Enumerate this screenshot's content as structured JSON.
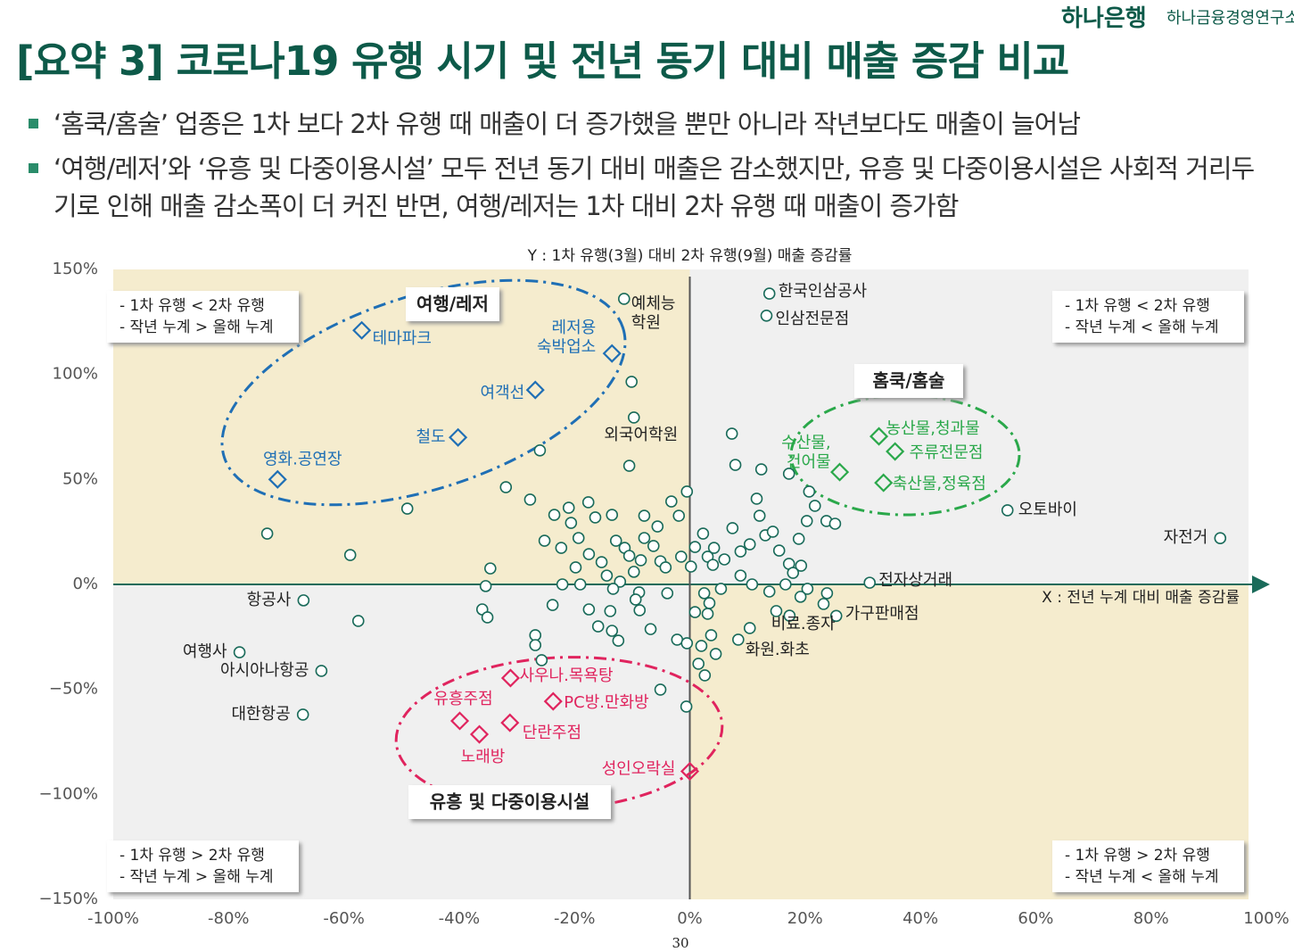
{
  "header": {
    "logo": "하나은행",
    "institute": "하나금융경영연구소"
  },
  "title": "[요약 3] 코로나19 유행 시기 및 전년 동기 대비 매출 증감 비교",
  "bullets": [
    "‘홈쿡/홈술’ 업종은 1차 보다 2차 유행 때 매출이 더 증가했을 뿐만 아니라 작년보다도 매출이 늘어남",
    "‘여행/레저’와 ‘유흥 및 다중이용시설’ 모두 전년 동기 대비 매출은 감소했지만, 유흥 및 다중이용시설은 사회적 거리두기로 인해 매출 감소폭이 더 커진 반면, 여행/레저는 1차 대비 2차 유행 때 매출이 증가함"
  ],
  "chart_data": {
    "type": "scatter",
    "y_label": "Y : 1차 유행(3월) 대비 2차 유행(9월) 매출 증감률",
    "x_label": "X : 전년 누계 대비 매출 증감률",
    "xlim": [
      -100,
      100
    ],
    "ylim": [
      -150,
      150
    ],
    "xticks": [
      {
        "value": -100,
        "label": "-100%"
      },
      {
        "value": -80,
        "label": "-80%"
      },
      {
        "value": -60,
        "label": "-60%"
      },
      {
        "value": -40,
        "label": "-40%"
      },
      {
        "value": -20,
        "label": "-20%"
      },
      {
        "value": 0,
        "label": "0%"
      },
      {
        "value": 20,
        "label": "20%"
      },
      {
        "value": 40,
        "label": "40%"
      },
      {
        "value": 60,
        "label": "60%"
      },
      {
        "value": 80,
        "label": "80%"
      },
      {
        "value": 100,
        "label": "100%"
      }
    ],
    "yticks": [
      {
        "value": 150,
        "label": "150%"
      },
      {
        "value": 100,
        "label": "100%"
      },
      {
        "value": 50,
        "label": "50%"
      },
      {
        "value": 0,
        "label": "0%"
      },
      {
        "value": -50,
        "label": "−50%"
      },
      {
        "value": -100,
        "label": "−100%"
      },
      {
        "value": -150,
        "label": "−150%"
      }
    ],
    "quadrant_notes": [
      [
        "- 1차 유행 < 2차 유행",
        "- 작년 누계 > 올해 누계"
      ],
      [
        "- 1차 유행 < 2차 유행",
        "- 작년 누계 < 올해 누계"
      ],
      [
        "- 1차 유행 > 2차 유행",
        "- 작년 누계 > 올해 누계"
      ],
      [
        "- 1차 유행 > 2차 유행",
        "- 작년 누계 < 올해 누계"
      ]
    ],
    "series": [
      {
        "name": "여행/레저",
        "color": "#1f6fb5",
        "marker": "diamond",
        "labels": [
          "테마파크",
          "레저용\n숙박업소",
          "여객선",
          "철도",
          "영화.공연장"
        ],
        "x": [
          -56.9,
          -13.5,
          -26.8,
          -40.2,
          -71.5
        ],
        "values": [
          121,
          110,
          92.6,
          70,
          50
        ]
      },
      {
        "name": "홈쿡/홈술",
        "color": "#2aa84a",
        "marker": "diamond",
        "labels": [
          "수산물,\n건어물",
          "농산물,청과물",
          "주류전문점",
          "축산물,정육점"
        ],
        "x": [
          26,
          32.8,
          35.6,
          33.6
        ],
        "values": [
          53.5,
          70.5,
          63.3,
          48.4
        ]
      },
      {
        "name": "유흥 및 다중이용시설",
        "color": "#e0245e",
        "marker": "diamond",
        "labels": [
          "사우나.목욕탕",
          "PC방.만화방",
          "유흥주점",
          "단란주점",
          "노래방",
          "성인오락실"
        ],
        "x": [
          -31.1,
          -23.7,
          -39.9,
          -31.2,
          -36.5,
          0
        ],
        "values": [
          -44.6,
          -55.7,
          -65,
          -65.9,
          -71.4,
          -89
        ]
      },
      {
        "color": "#1a6b5a",
        "marker": "circle",
        "labels": [
          "예체능\n학원",
          "한국인삼공사",
          "인삼전문점",
          "외국어학원",
          "오토바이",
          "자전거",
          "전자상거래",
          "가구판매점",
          "비료.종자",
          "화원.화초",
          "항공사",
          "여행사",
          "아시아나항공",
          "대한항공"
        ],
        "x": [
          -11.4,
          13.8,
          13.3,
          -9.7,
          55.1,
          92,
          31.2,
          25.4,
          10.4,
          8.4,
          -67,
          -78.1,
          -63.9,
          -67.1
        ],
        "values": [
          136,
          138.5,
          128,
          79.5,
          35.3,
          22,
          0.8,
          -15,
          -20.8,
          -26.3,
          -7.6,
          -32.3,
          -41.2,
          -62
        ]
      },
      {
        "color": "#1a6b5a",
        "marker": "circle",
        "x": [
          -10.1,
          -26,
          -10.5,
          -31.9,
          -27.7,
          -21,
          -23.5,
          -17.6,
          -13.5,
          -3.2,
          -0.5,
          -1.9,
          7.3,
          7.9,
          12.4,
          17.2,
          20.7,
          21.7,
          20.3,
          23.7,
          25.2,
          18.9,
          11.6,
          12.1,
          7.4,
          -49,
          -73.3,
          -58.9,
          -34.6,
          -35.4,
          -36,
          -35.1,
          -57.5,
          -26.8,
          -26.8,
          -25.7,
          -23.8,
          -25.2,
          -22.3,
          -19.3,
          -16.4,
          -20.6,
          -7.9,
          -5.6,
          -7.9,
          -6.3,
          -11.3,
          -12.8,
          -10.5,
          -8.5,
          -5.1,
          -9.7,
          -12.1,
          -14.4,
          -19,
          -22.1,
          -19.8,
          -17.5,
          -15.3,
          -4.2,
          -1.5,
          0.9,
          2.3,
          4.2,
          3.1,
          0.2,
          4,
          6,
          8.8,
          10.4,
          13.1,
          14.4,
          15.5,
          17.2,
          19.3,
          17.9,
          16.6,
          13.8,
          10.8,
          8.8,
          5.4,
          2.5,
          3.4,
          0.9,
          3.1,
          3.7,
          2,
          4.5,
          1.5,
          2.6,
          -2.2,
          -0.5,
          -5.1,
          -0.6,
          -13.3,
          -8.8,
          -3.9,
          -9.4,
          -17.5,
          -13.8,
          -8.7,
          -15.9,
          -13.5,
          -12.4,
          -6.8,
          20.4,
          23.8,
          23.2,
          19.2,
          15,
          17.3
        ],
        "values": [
          96.5,
          63.8,
          56.5,
          46.3,
          40.4,
          36.5,
          33.1,
          39.1,
          33.1,
          39.5,
          44.2,
          32.7,
          71.8,
          56.9,
          54.8,
          52.7,
          44.2,
          37.4,
          30.2,
          30.2,
          28.9,
          21.7,
          40.8,
          32.7,
          26.8,
          36.1,
          24.2,
          14,
          7.6,
          -0.8,
          -11.9,
          -15.7,
          -17.4,
          -24.2,
          -28.9,
          -36.1,
          -9.8,
          20.8,
          17.4,
          22.1,
          31.9,
          29.3,
          32.7,
          27.6,
          22.1,
          18.3,
          17.4,
          20.8,
          13.6,
          11.5,
          11,
          6,
          1.3,
          4.2,
          0,
          0,
          8.1,
          14.4,
          10.6,
          8.1,
          13.2,
          17.8,
          24.2,
          17.4,
          13.2,
          8.5,
          9.3,
          11.9,
          15.7,
          19.1,
          23.4,
          25.1,
          16.1,
          9.8,
          8.9,
          5.5,
          0,
          -3.4,
          0,
          4.2,
          -2.1,
          -4.2,
          -8.9,
          -13.2,
          -14,
          -24.2,
          -29.3,
          -33.1,
          -37.8,
          -43.3,
          -26.3,
          -28,
          -50.1,
          -58.2,
          -2.1,
          -3.8,
          -4.2,
          -7.2,
          -11.9,
          -12.7,
          -12.3,
          -20,
          -22.1,
          -26.8,
          -21.3,
          -2.1,
          -4.2,
          -9.3,
          -5.9,
          -12.7,
          -14.9
        ]
      }
    ]
  },
  "page_number": "30"
}
